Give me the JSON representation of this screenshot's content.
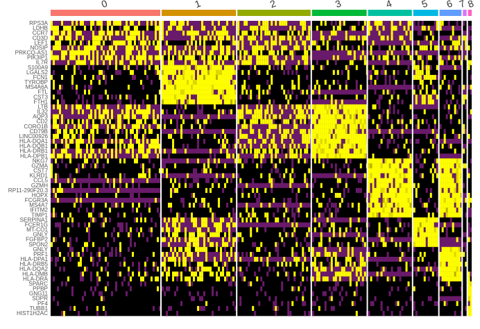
{
  "chart_data": {
    "type": "heatmap",
    "title": "",
    "xlabel": "",
    "ylabel": "",
    "colors": {
      "low": "#000000",
      "mid": "#6a1a6a",
      "high": "#ffff00",
      "separator": "#ffffff"
    },
    "clusters": [
      {
        "label": "0",
        "color": "#f8766d",
        "weight": 2.95
      },
      {
        "label": "1",
        "color": "#d39200",
        "weight": 2.0
      },
      {
        "label": "2",
        "color": "#93aa00",
        "weight": 1.97
      },
      {
        "label": "3",
        "color": "#00ba38",
        "weight": 1.47
      },
      {
        "label": "4",
        "color": "#00c19f",
        "weight": 1.18
      },
      {
        "label": "5",
        "color": "#00b9e3",
        "weight": 0.67
      },
      {
        "label": "6",
        "color": "#619cff",
        "weight": 0.59
      },
      {
        "label": "7",
        "color": "#db72fb",
        "weight": 0.1
      },
      {
        "label": "8",
        "color": "#ff61c3",
        "weight": 0.1
      }
    ],
    "genes": [
      "RPS3A",
      "LDHB",
      "CCR7",
      "CD3D",
      "LEF1",
      "NOSIP",
      "PRKCQ-AS1",
      "PIK3IP1",
      "IL7R",
      "S100A9",
      "LGALS2",
      "FCN1",
      "TYROBP",
      "MS4A6A",
      "FTL",
      "CST3",
      "FTH1",
      "LTB",
      "IL32",
      "AQP3",
      "CD2",
      "CORO1B",
      "CD79B",
      "LINC00926",
      "HLA-DQA1",
      "HLA-DQB1",
      "HLA-DRB1",
      "HLA-DPB1",
      "NKG7",
      "GZMA",
      "CST7",
      "KLRD1",
      "CCL5",
      "GZMH",
      "RP11-290F20.3",
      "HOPX",
      "FCGR3A",
      "MS4A7",
      "IFITM2",
      "TIMP1",
      "SERPINA1",
      "FCER1G",
      "MT-CO1",
      "GNLY",
      "FGFBP2",
      "SPON2",
      "GNLY",
      "PRF1",
      "HLA-DPA1",
      "HLA-DRB5",
      "HLA-DQA2",
      "HLA-DMB",
      "HLA-DRA",
      "SPARC",
      "PPBP",
      "GNG11",
      "SDPR",
      "PF4",
      "TUBB1",
      "HIST1H2AC"
    ],
    "modules": [
      {
        "start": 0,
        "end": 9,
        "high": [
          0,
          2
        ],
        "mid": [
          1
        ],
        "pattern": "mixed"
      },
      {
        "start": 9,
        "end": 17,
        "high": [
          1
        ],
        "mid": [
          5
        ],
        "pattern": "block"
      },
      {
        "start": 17,
        "end": 28,
        "high": [
          3
        ],
        "mid": [
          0,
          2
        ],
        "pattern": "block"
      },
      {
        "start": 28,
        "end": 40,
        "high": [
          4,
          6
        ],
        "mid": [],
        "pattern": "block"
      },
      {
        "start": 40,
        "end": 46,
        "high": [
          5
        ],
        "mid": [
          1
        ],
        "pattern": "block"
      },
      {
        "start": 46,
        "end": 53,
        "high": [
          6
        ],
        "mid": [
          3,
          1
        ],
        "pattern": "block"
      },
      {
        "start": 53,
        "end": 60,
        "high": [
          8
        ],
        "mid": [],
        "pattern": "sparse"
      }
    ]
  }
}
